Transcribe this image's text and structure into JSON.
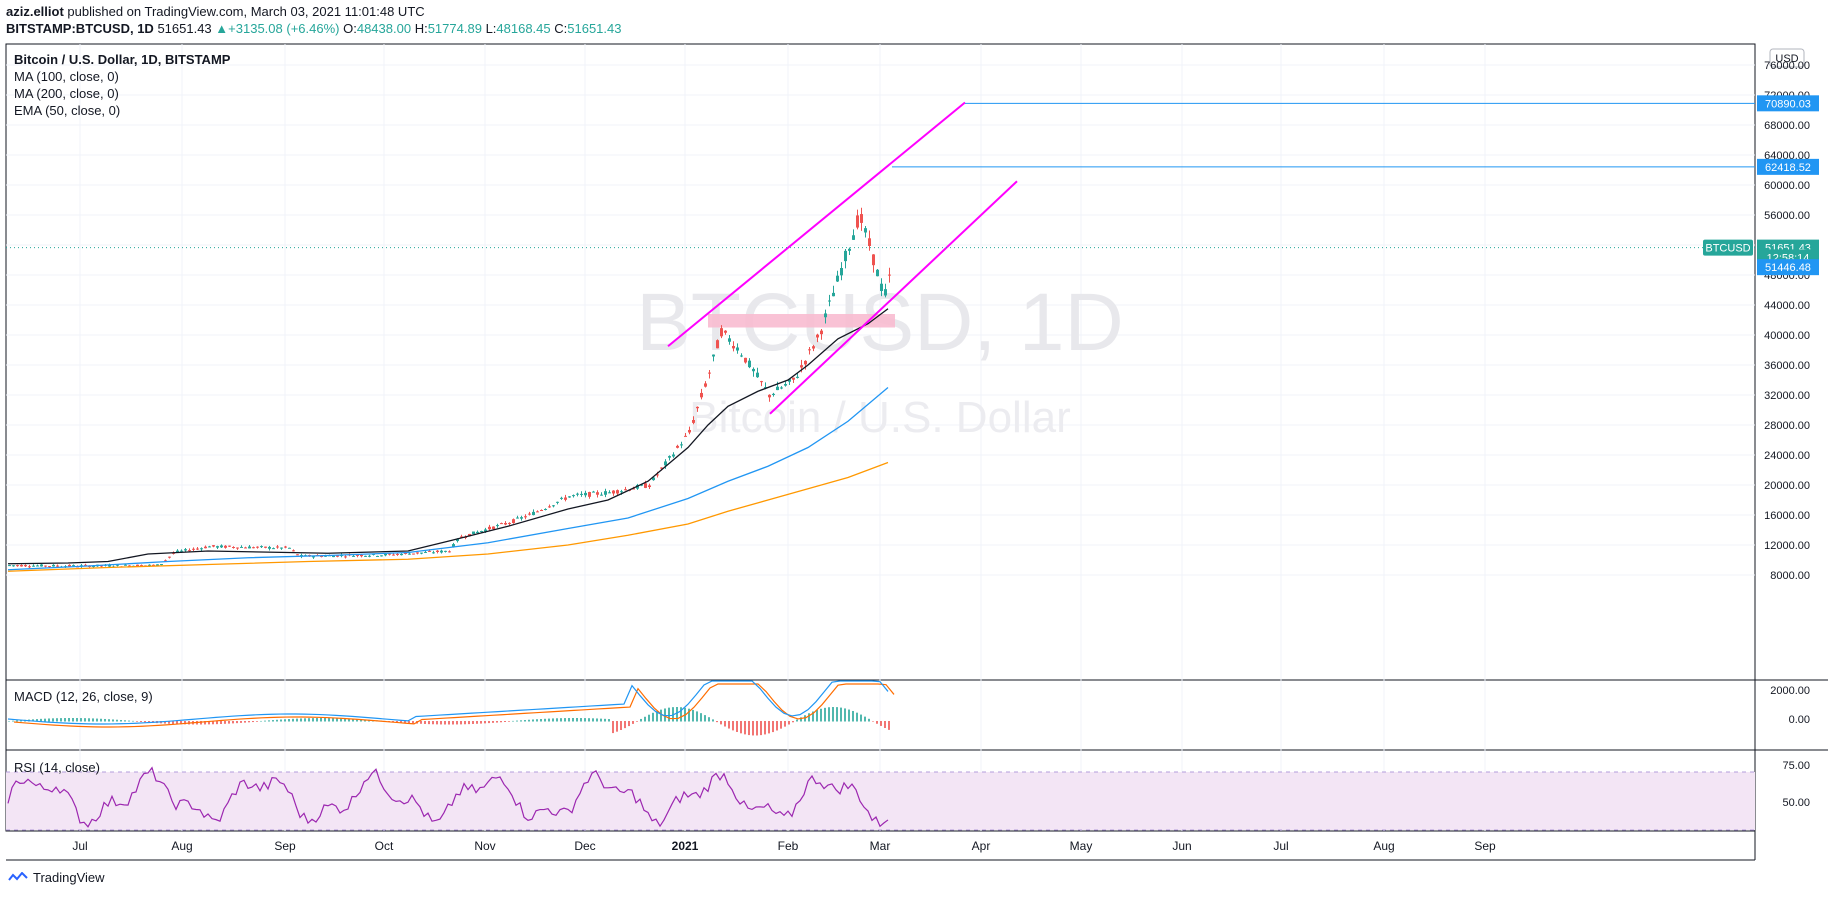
{
  "publish": {
    "author": "aziz.elliot",
    "text": " published on TradingView.com, March 03, 2021 11:01:48 UTC"
  },
  "symbol": {
    "ticker": "BITSTAMP:BTCUSD, 1D",
    "last": "51651.43",
    "change": "+3135.08 (+6.46%)",
    "o_label": "O:",
    "o": "48438.00",
    "h_label": "H:",
    "h": "51774.89",
    "l_label": "L:",
    "l": "48168.45",
    "c_label": "C:",
    "c": "51651.43"
  },
  "legend": {
    "title": "Bitcoin / U.S. Dollar, 1D, BITSTAMP",
    "ind1": "MA (100, close, 0)",
    "ind2": "MA (200, close, 0)",
    "ind3": "EMA (50, close, 0)"
  },
  "watermark": {
    "ticker": "BTCUSD, 1D",
    "name": "Bitcoin / U.S. Dollar"
  },
  "macd_label": "MACD (12, 26, close, 9)",
  "rsi_label": "RSI (14, close)",
  "currency": "USD",
  "footer": {
    "brand": "TradingView"
  },
  "colors": {
    "up": "#26a69a",
    "down": "#ef5350",
    "channel": "#ff00ff",
    "level": "#2196f3",
    "ema50": "#131722",
    "ma100": "#2196f3",
    "ma200": "#ff9800",
    "rsi": "#9c27b0",
    "rsi_band": "#f3e5f5",
    "price_tag": "#26a69a",
    "zone": "#f8bbd0"
  },
  "chart_data": {
    "type": "line",
    "price_axis": {
      "ticks": [
        "76000.00",
        "72000.00",
        "68000.00",
        "64000.00",
        "60000.00",
        "56000.00",
        "52000.00",
        "48000.00",
        "44000.00",
        "40000.00",
        "36000.00",
        "32000.00",
        "28000.00",
        "24000.00",
        "20000.00",
        "16000.00",
        "12000.00",
        "8000.00"
      ],
      "range": [
        7000,
        78000
      ]
    },
    "time_axis": [
      "Jul",
      "Aug",
      "Sep",
      "Oct",
      "Nov",
      "Dec",
      "2021",
      "Feb",
      "Mar",
      "Apr",
      "May",
      "Jun",
      "Jul",
      "Aug",
      "Sep"
    ],
    "price_tags": [
      {
        "label": "70890.03",
        "value": 70890.03,
        "kind": "level"
      },
      {
        "label": "62418.52",
        "value": 62418.52,
        "kind": "level"
      },
      {
        "label": "51651.43",
        "value": 51651.43,
        "kind": "last"
      },
      {
        "label": "12:58:14",
        "value": 50350,
        "kind": "countdown"
      },
      {
        "label": "51446.48",
        "value": 49046,
        "kind": "level"
      }
    ],
    "last_tag_name": "BTCUSD",
    "macd_axis": [
      "2000.00",
      "0.00"
    ],
    "rsi_axis": [
      "75.00",
      "50.00"
    ],
    "ema50": [
      [
        0,
        9500
      ],
      [
        60,
        9600
      ],
      [
        100,
        9800
      ],
      [
        140,
        10800
      ],
      [
        200,
        11200
      ],
      [
        280,
        11000
      ],
      [
        320,
        10900
      ],
      [
        400,
        11200
      ],
      [
        440,
        12500
      ],
      [
        500,
        14500
      ],
      [
        560,
        16800
      ],
      [
        600,
        18000
      ],
      [
        640,
        20500
      ],
      [
        680,
        25000
      ],
      [
        700,
        28000
      ],
      [
        720,
        30500
      ],
      [
        750,
        32500
      ],
      [
        780,
        34000
      ],
      [
        800,
        36000
      ],
      [
        830,
        39500
      ],
      [
        860,
        41500
      ],
      [
        880,
        43500
      ]
    ],
    "ma100": [
      [
        0,
        8700
      ],
      [
        80,
        9200
      ],
      [
        160,
        9800
      ],
      [
        240,
        10300
      ],
      [
        320,
        10600
      ],
      [
        400,
        11000
      ],
      [
        480,
        12300
      ],
      [
        560,
        14200
      ],
      [
        620,
        15600
      ],
      [
        680,
        18200
      ],
      [
        720,
        20500
      ],
      [
        760,
        22500
      ],
      [
        800,
        25000
      ],
      [
        840,
        28500
      ],
      [
        880,
        33000
      ]
    ],
    "ma200": [
      [
        0,
        8500
      ],
      [
        100,
        9000
      ],
      [
        200,
        9400
      ],
      [
        300,
        9800
      ],
      [
        400,
        10100
      ],
      [
        480,
        10800
      ],
      [
        560,
        12000
      ],
      [
        620,
        13300
      ],
      [
        680,
        14800
      ],
      [
        720,
        16500
      ],
      [
        760,
        18000
      ],
      [
        800,
        19500
      ],
      [
        840,
        21000
      ],
      [
        880,
        23000
      ]
    ],
    "channel_upper": [
      [
        [
          668,
          38500
        ],
        [
          965,
          71000
        ]
      ]
    ],
    "channel_lower": [
      [
        [
          770,
          29500
        ],
        [
          1017,
          60500
        ]
      ]
    ],
    "levels": [
      {
        "value": 70890.03,
        "from": 965
      },
      {
        "value": 62418.52,
        "from": 892
      }
    ],
    "zone": {
      "from": 708,
      "to": 895,
      "low": 41000,
      "high": 42800
    }
  }
}
